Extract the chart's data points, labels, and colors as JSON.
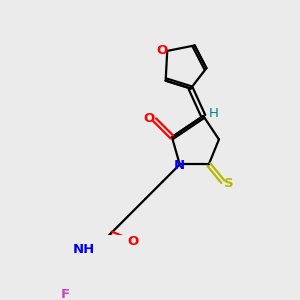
{
  "bg_color": "#ebebeb",
  "atom_colors": {
    "O": "#ff0000",
    "N": "#0000ff",
    "S": "#b8b800",
    "F": "#cc44cc",
    "H": "#008080",
    "C": "#000000"
  },
  "bond_color": "#000000",
  "font_size": 9.5,
  "lw": 1.6
}
